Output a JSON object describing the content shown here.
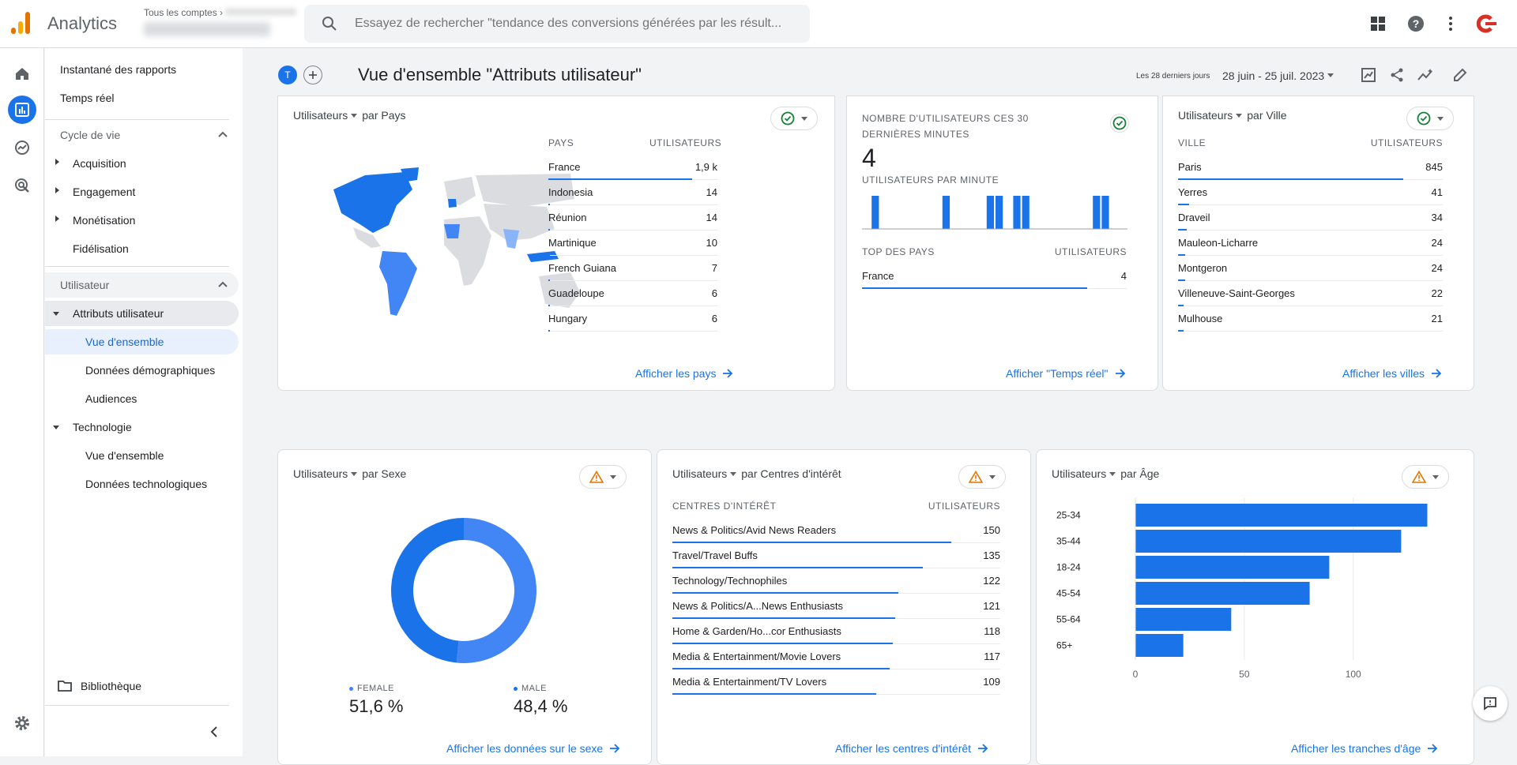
{
  "header": {
    "app_name": "Analytics",
    "account_label": "Tous les comptes",
    "search_placeholder": "Essayez de rechercher \"tendance des conversions générées par les résult..."
  },
  "colors": {
    "blue": "#1a73e8",
    "blue_light": "#4285f4",
    "map_light": "#8ab4f8",
    "map_base": "#dadce0",
    "warn": "#d93025",
    "ok": "#188038"
  },
  "nav": {
    "snapshot": "Instantané des rapports",
    "realtime": "Temps réel",
    "lifecycle": "Cycle de vie",
    "acquisition": "Acquisition",
    "engagement": "Engagement",
    "monetisation": "Monétisation",
    "retention": "Fidélisation",
    "user": "Utilisateur",
    "user_attributes": "Attributs utilisateur",
    "overview": "Vue d'ensemble",
    "demographics": "Données démographiques",
    "audiences": "Audiences",
    "technology": "Technologie",
    "tech_overview": "Vue d'ensemble",
    "tech_details": "Données technologiques",
    "library": "Bibliothèque"
  },
  "page": {
    "title": "Vue d'ensemble \"Attributs utilisateur\"",
    "avatar": "T",
    "range_label": "Les 28 derniers jours",
    "date_range": "28 juin - 25 juil. 2023"
  },
  "country": {
    "metric": "Utilisateurs",
    "dim": "par Pays",
    "col1": "PAYS",
    "col2": "UTILISATEURS",
    "rows": [
      {
        "name": "France",
        "value": "1,9 k",
        "pct": 1.0
      },
      {
        "name": "Indonesia",
        "value": "14",
        "pct": 0.01
      },
      {
        "name": "Réunion",
        "value": "14",
        "pct": 0.01
      },
      {
        "name": "Martinique",
        "value": "10",
        "pct": 0.01
      },
      {
        "name": "French Guiana",
        "value": "7",
        "pct": 0.004
      },
      {
        "name": "Guadeloupe",
        "value": "6",
        "pct": 0.003
      },
      {
        "name": "Hungary",
        "value": "6",
        "pct": 0.003
      }
    ],
    "link": "Afficher les pays"
  },
  "realtime": {
    "title": "NOMBRE D'UTILISATEURS CES 30 DERNIÈRES MINUTES",
    "count": "4",
    "per_minute": "UTILISATEURS PAR MINUTE",
    "minutes": [
      0,
      1,
      0,
      0,
      0,
      0,
      0,
      0,
      0,
      1,
      0,
      0,
      0,
      0,
      1,
      1,
      0,
      1,
      1,
      0,
      0,
      0,
      0,
      0,
      0,
      0,
      1,
      1,
      0,
      0
    ],
    "top_label": "TOP DES PAYS",
    "top_col2": "UTILISATEURS",
    "top_rows": [
      {
        "name": "France",
        "value": "4",
        "pct": 1.0
      }
    ],
    "link": "Afficher \"Temps réel\""
  },
  "city": {
    "metric": "Utilisateurs",
    "dim": "par Ville",
    "col1": "VILLE",
    "col2": "UTILISATEURS",
    "rows": [
      {
        "name": "Paris",
        "value": "845",
        "pct": 1.0
      },
      {
        "name": "Yerres",
        "value": "41",
        "pct": 0.05
      },
      {
        "name": "Draveil",
        "value": "34",
        "pct": 0.04
      },
      {
        "name": "Mauleon-Licharre",
        "value": "24",
        "pct": 0.03
      },
      {
        "name": "Montgeron",
        "value": "24",
        "pct": 0.03
      },
      {
        "name": "Villeneuve-Saint-Georges",
        "value": "22",
        "pct": 0.026
      },
      {
        "name": "Mulhouse",
        "value": "21",
        "pct": 0.025
      }
    ],
    "link": "Afficher les villes"
  },
  "gender": {
    "metric": "Utilisateurs",
    "dim": "par Sexe",
    "segments": [
      {
        "label": "FEMALE",
        "value": "51,6 %",
        "share": 0.516,
        "color": "#4285f4"
      },
      {
        "label": "MALE",
        "value": "48,4 %",
        "share": 0.484,
        "color": "#1a73e8"
      }
    ],
    "link": "Afficher les données sur le sexe"
  },
  "interests": {
    "metric": "Utilisateurs",
    "dim": "par Centres d'intérêt",
    "col1": "CENTRES D'INTÉRÊT",
    "col2": "UTILISATEURS",
    "rows": [
      {
        "name": "News & Politics/Avid News Readers",
        "value": "150",
        "pct": 1.0
      },
      {
        "name": "Travel/Travel Buffs",
        "value": "135",
        "pct": 0.9
      },
      {
        "name": "Technology/Technophiles",
        "value": "122",
        "pct": 0.81
      },
      {
        "name": "News & Politics/A...News Enthusiasts",
        "value": "121",
        "pct": 0.8
      },
      {
        "name": "Home & Garden/Ho...cor Enthusiasts",
        "value": "118",
        "pct": 0.79
      },
      {
        "name": "Media & Entertainment/Movie Lovers",
        "value": "117",
        "pct": 0.78
      },
      {
        "name": "Media & Entertainment/TV Lovers",
        "value": "109",
        "pct": 0.73
      }
    ],
    "link": "Afficher les centres d'intérêt"
  },
  "age": {
    "metric": "Utilisateurs",
    "dim": "par Âge",
    "link": "Afficher les tranches d'âge"
  },
  "chart_data": {
    "type": "bar",
    "categories": [
      "25-34",
      "35-44",
      "18-24",
      "45-54",
      "55-64",
      "65+"
    ],
    "values": [
      134,
      122,
      89,
      80,
      44,
      22
    ],
    "xlim": [
      0,
      140
    ],
    "xticks": [
      "0",
      "50",
      "100"
    ],
    "orientation": "horizontal"
  }
}
